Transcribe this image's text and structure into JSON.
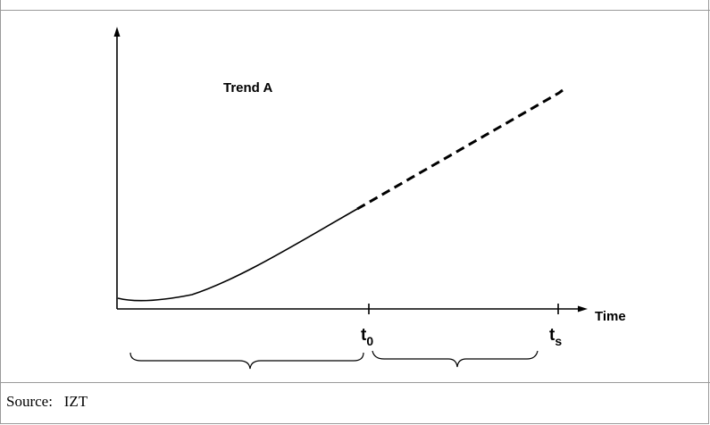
{
  "diagram": {
    "trend_label": "Trend A",
    "x_axis_label": "Time",
    "t0": {
      "base": "t",
      "sub": "0"
    },
    "ts": {
      "base": "t",
      "sub": "s"
    }
  },
  "footer": {
    "source_label": "Source:",
    "source_value": "IZT"
  }
}
